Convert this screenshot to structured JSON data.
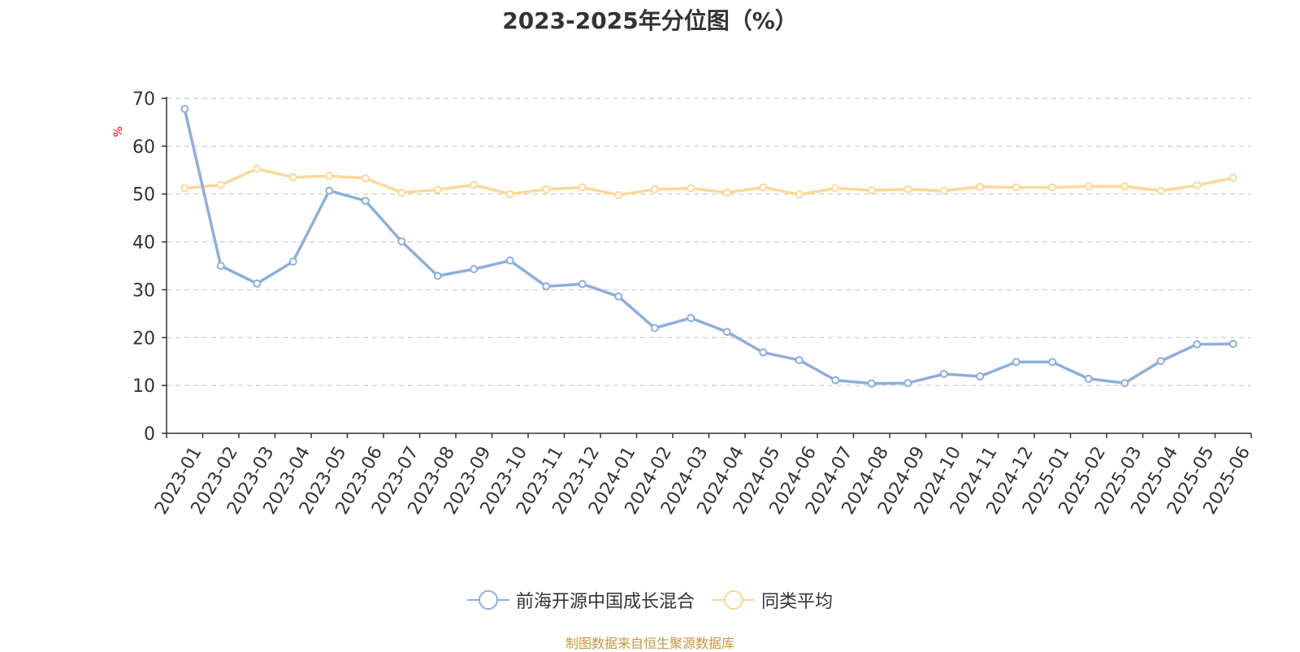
{
  "chart_data": {
    "type": "line",
    "title": "2023-2025年分位图（%）",
    "ylabel": "%",
    "xlabel": "",
    "ylim": [
      0,
      70
    ],
    "yticks": [
      0,
      10,
      20,
      30,
      40,
      50,
      60,
      70
    ],
    "grid": true,
    "legend_position": "bottom",
    "categories": [
      "2023-01",
      "2023-02",
      "2023-03",
      "2023-04",
      "2023-05",
      "2023-06",
      "2023-07",
      "2023-08",
      "2023-09",
      "2023-10",
      "2023-11",
      "2023-12",
      "2024-01",
      "2024-02",
      "2024-03",
      "2024-04",
      "2024-05",
      "2024-06",
      "2024-07",
      "2024-08",
      "2024-09",
      "2024-10",
      "2024-11",
      "2024-12",
      "2025-01",
      "2025-02",
      "2025-03",
      "2025-04",
      "2025-05",
      "2025-06"
    ],
    "series": [
      {
        "name": "前海开源中国成长混合",
        "color": "#8eaedb",
        "values": [
          67.8,
          35.0,
          31.3,
          35.9,
          50.7,
          48.6,
          40.1,
          32.9,
          34.3,
          36.1,
          30.7,
          31.2,
          28.6,
          22.0,
          24.1,
          21.2,
          16.9,
          15.3,
          11.1,
          10.4,
          10.5,
          12.4,
          11.9,
          14.9,
          14.9,
          11.4,
          10.5,
          15.1,
          18.6,
          18.7
        ]
      },
      {
        "name": "同类平均",
        "color": "#fcd898",
        "values": [
          51.2,
          51.9,
          55.3,
          53.5,
          53.8,
          53.3,
          50.3,
          50.9,
          51.9,
          50.0,
          51.0,
          51.4,
          49.8,
          51.0,
          51.2,
          50.3,
          51.4,
          49.9,
          51.2,
          50.8,
          51.0,
          50.7,
          51.5,
          51.4,
          51.4,
          51.6,
          51.6,
          50.7,
          51.8,
          53.4
        ]
      }
    ]
  },
  "source_text": "制图数据来自恒生聚源数据库"
}
